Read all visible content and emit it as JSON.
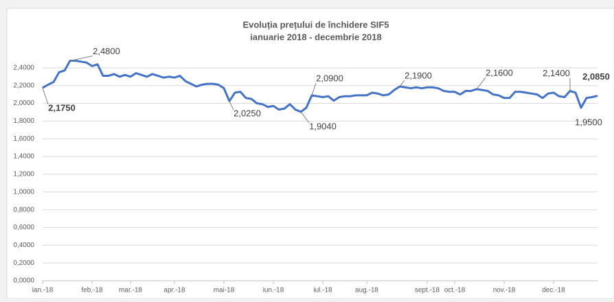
{
  "chart_data": {
    "type": "line",
    "title": "Evoluția prețului de închidere SIF5",
    "subtitle": "ianuarie 2018 - decembrie 2018",
    "categories": [
      "ian.-18",
      null,
      null,
      null,
      null,
      null,
      null,
      null,
      null,
      "feb.-18",
      null,
      null,
      null,
      null,
      null,
      null,
      "mar.-18",
      null,
      null,
      null,
      null,
      null,
      null,
      null,
      "apr.-18",
      null,
      null,
      null,
      null,
      null,
      null,
      null,
      null,
      "mai-18",
      null,
      null,
      null,
      null,
      null,
      null,
      null,
      null,
      "iun.-18",
      null,
      null,
      null,
      null,
      null,
      null,
      null,
      null,
      "iul.-18",
      null,
      null,
      null,
      null,
      null,
      null,
      null,
      "aug.-18",
      null,
      null,
      null,
      null,
      null,
      null,
      null,
      null,
      null,
      null,
      "sept.-18",
      null,
      null,
      null,
      null,
      "oct.-18",
      null,
      null,
      null,
      null,
      null,
      null,
      null,
      null,
      "nov.-18",
      null,
      null,
      null,
      null,
      null,
      null,
      null,
      null,
      "dec.-18",
      null,
      null,
      null,
      null,
      null,
      null,
      null,
      null
    ],
    "series": [
      {
        "name": "SIF5",
        "color": "#4472c4",
        "values": [
          2.175,
          2.21,
          2.24,
          2.35,
          2.37,
          2.48,
          2.48,
          2.47,
          2.46,
          2.42,
          2.44,
          2.31,
          2.31,
          2.33,
          2.3,
          2.32,
          2.3,
          2.34,
          2.32,
          2.3,
          2.33,
          2.31,
          2.29,
          2.3,
          2.29,
          2.31,
          2.25,
          2.22,
          2.19,
          2.21,
          2.22,
          2.22,
          2.21,
          2.17,
          2.025,
          2.12,
          2.13,
          2.06,
          2.05,
          2.0,
          1.99,
          1.96,
          1.97,
          1.93,
          1.94,
          1.99,
          1.93,
          1.904,
          1.95,
          2.09,
          2.08,
          2.07,
          2.08,
          2.03,
          2.07,
          2.08,
          2.08,
          2.09,
          2.09,
          2.09,
          2.12,
          2.11,
          2.09,
          2.1,
          2.15,
          2.19,
          2.18,
          2.17,
          2.18,
          2.17,
          2.18,
          2.18,
          2.17,
          2.14,
          2.13,
          2.13,
          2.1,
          2.14,
          2.14,
          2.16,
          2.15,
          2.14,
          2.1,
          2.09,
          2.06,
          2.06,
          2.13,
          2.13,
          2.12,
          2.11,
          2.1,
          2.06,
          2.11,
          2.12,
          2.08,
          2.07,
          2.14,
          2.12,
          1.95,
          2.06,
          2.07,
          2.085
        ],
        "value_labels": [
          "2,1750",
          null,
          null,
          null,
          null,
          "2,4800",
          null,
          null,
          null,
          null,
          null,
          null,
          null,
          null,
          null,
          null,
          null,
          null,
          null,
          null,
          null,
          null,
          null,
          null,
          null,
          null,
          null,
          null,
          null,
          null,
          null,
          null,
          null,
          null,
          "2,0250",
          null,
          null,
          null,
          null,
          null,
          null,
          null,
          null,
          null,
          null,
          null,
          null,
          "1,9040",
          null,
          "2,0900",
          null,
          null,
          null,
          null,
          null,
          null,
          null,
          null,
          null,
          null,
          null,
          null,
          null,
          null,
          null,
          "2,1900",
          null,
          null,
          null,
          null,
          null,
          null,
          null,
          null,
          null,
          null,
          null,
          null,
          null,
          "2,1600",
          null,
          null,
          null,
          null,
          null,
          null,
          null,
          null,
          null,
          null,
          null,
          null,
          null,
          null,
          null,
          null,
          "2,1400",
          null,
          "1,9500",
          null,
          null,
          "2,0850"
        ]
      }
    ],
    "ylim": [
      0,
      2.6
    ],
    "yticks": [
      {
        "value": 0,
        "label": "0,0000"
      },
      {
        "value": 0.2,
        "label": "0,2000"
      },
      {
        "value": 0.4,
        "label": "0,4000"
      },
      {
        "value": 0.6,
        "label": "0,6000"
      },
      {
        "value": 0.8,
        "label": "0,8000"
      },
      {
        "value": 1.0,
        "label": "1,0000"
      },
      {
        "value": 1.2,
        "label": "1,2000"
      },
      {
        "value": 1.4,
        "label": "1,4000"
      },
      {
        "value": 1.6,
        "label": "1,6000"
      },
      {
        "value": 1.8,
        "label": "1,8000"
      },
      {
        "value": 2.0,
        "label": "2,0000"
      },
      {
        "value": 2.2,
        "label": "2,2000"
      },
      {
        "value": 2.4,
        "label": "2,4000"
      }
    ],
    "grid": true
  }
}
